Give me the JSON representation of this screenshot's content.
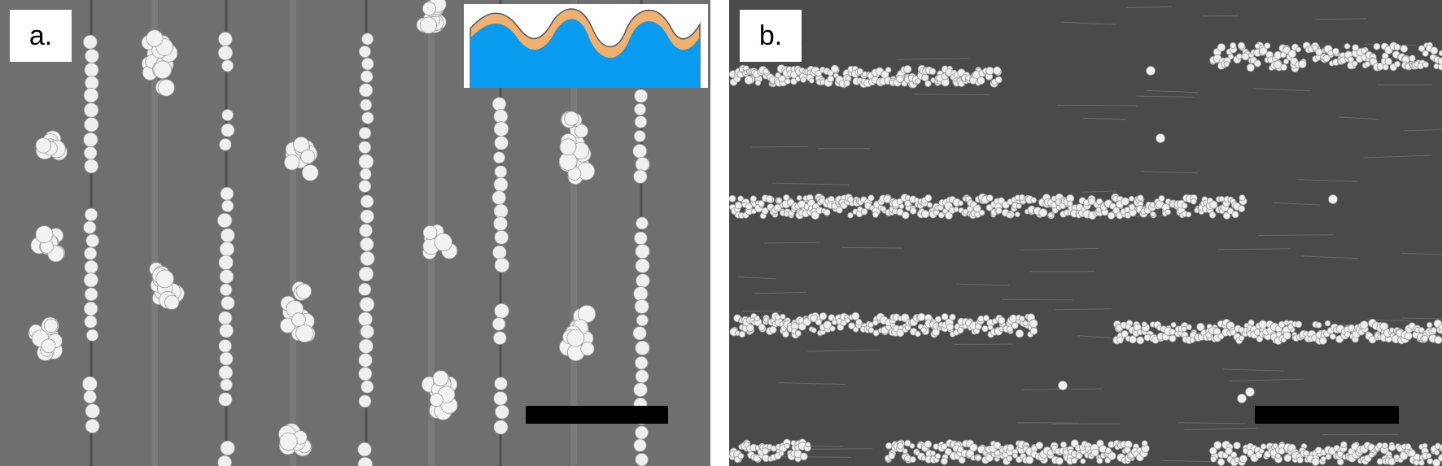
{
  "figure": {
    "panels": [
      {
        "label": "a.",
        "description_icon": "sem-image",
        "inset_icon": "wavy-substrate-cross-section-icon"
      },
      {
        "label": "b.",
        "description_icon": "sem-image"
      }
    ]
  },
  "colors": {
    "panel_a_bg": "#6f6f6f",
    "panel_b_bg": "#4a4a4a",
    "particle": "#f2f2f2",
    "inset_substrate": "#0a9cf0",
    "inset_coating": "#f0b070",
    "scale_bar": "#000000"
  }
}
